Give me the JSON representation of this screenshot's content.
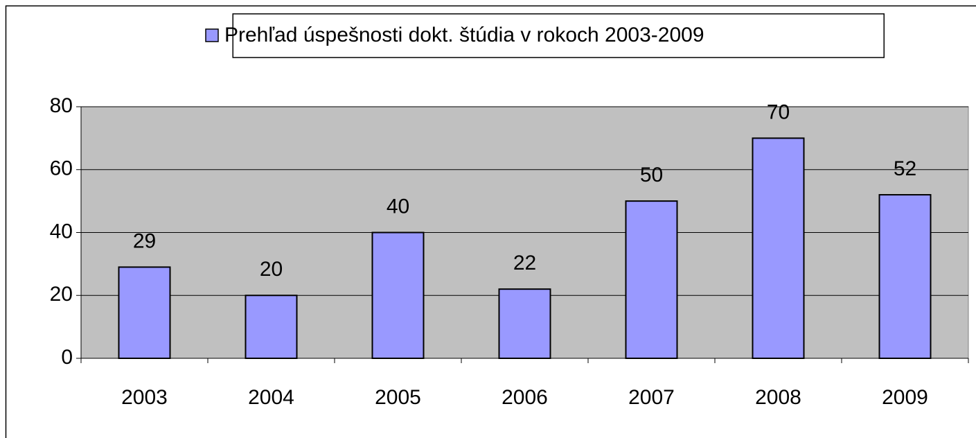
{
  "chart_data": {
    "type": "bar",
    "categories": [
      "2003",
      "2004",
      "2005",
      "2006",
      "2007",
      "2008",
      "2009"
    ],
    "series": [
      {
        "name": "Prehľad úspešnosti dokt. štúdia v rokoch 2003-2009",
        "color": "#9999ff",
        "values": [
          29,
          20,
          40,
          22,
          50,
          70,
          52
        ]
      }
    ],
    "ylim": [
      0,
      80
    ],
    "yticks": [
      0,
      20,
      40,
      60,
      80
    ],
    "grid": true,
    "legend": "top",
    "plot_background": "#c0c0c0"
  }
}
